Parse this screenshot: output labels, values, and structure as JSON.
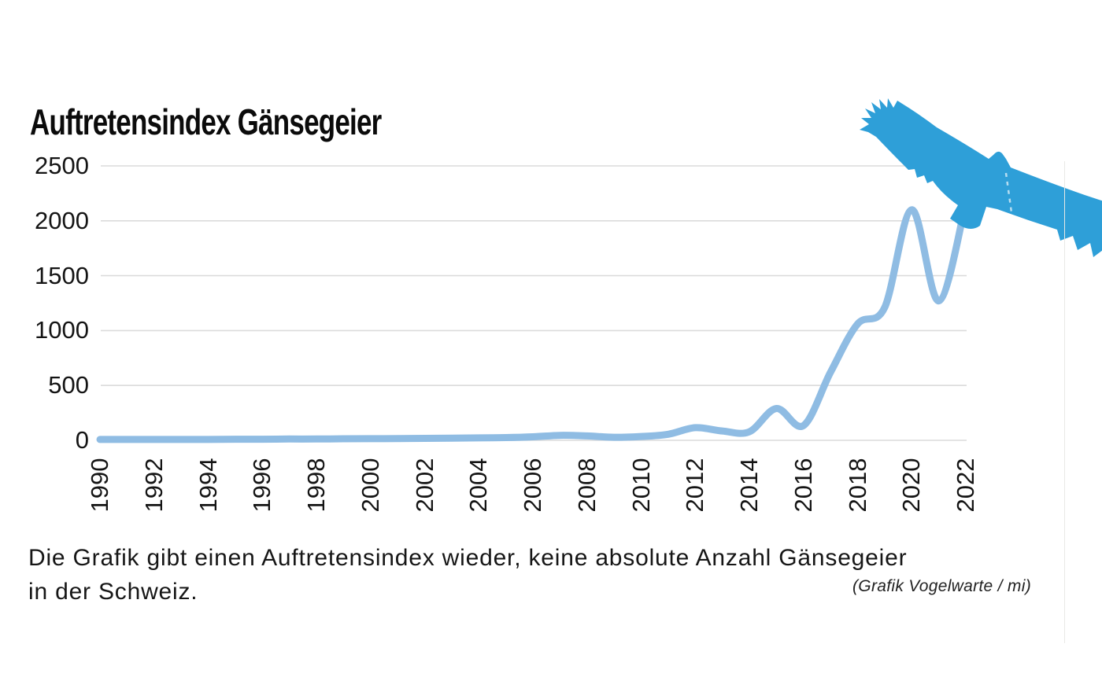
{
  "title": "Auftretensindex Gänsegeier",
  "caption": {
    "line1": "Die Grafik gibt einen Auftretensindex wieder, keine absolute Anzahl Gänsegeier",
    "line2": "in der Schweiz.",
    "credit": "(Grafik Vogelwarte / mi)"
  },
  "colors": {
    "line": "#8FBCE3",
    "vulture": "#2E9FD8",
    "grid": "#DBDBDB",
    "text": "#141414"
  },
  "icons": {
    "vulture": "griffon-vulture-silhouette"
  },
  "chart_data": {
    "type": "line",
    "title": "Auftretensindex Gänsegeier",
    "series_name": "Auftretensindex",
    "x": [
      1990,
      1991,
      1992,
      1993,
      1994,
      1995,
      1996,
      1997,
      1998,
      1999,
      2000,
      2001,
      2002,
      2003,
      2004,
      2005,
      2006,
      2007,
      2008,
      2009,
      2010,
      2011,
      2012,
      2013,
      2014,
      2015,
      2016,
      2017,
      2018,
      2019,
      2020,
      2021,
      2022
    ],
    "values": [
      8,
      8,
      8,
      8,
      8,
      10,
      10,
      12,
      12,
      14,
      15,
      16,
      18,
      20,
      22,
      25,
      32,
      45,
      40,
      28,
      35,
      55,
      115,
      85,
      78,
      290,
      135,
      620,
      1060,
      1210,
      2100,
      1270,
      2160
    ],
    "x_ticks": [
      1990,
      1992,
      1994,
      1996,
      1998,
      2000,
      2002,
      2004,
      2006,
      2008,
      2010,
      2012,
      2014,
      2016,
      2018,
      2020,
      2022
    ],
    "y_ticks": [
      0,
      500,
      1000,
      1500,
      2000,
      2500
    ],
    "ylim": [
      0,
      2500
    ],
    "xlabel": "",
    "ylabel": "",
    "grid": "horizontal",
    "legend": "none",
    "line_color": "#8FBCE3"
  }
}
